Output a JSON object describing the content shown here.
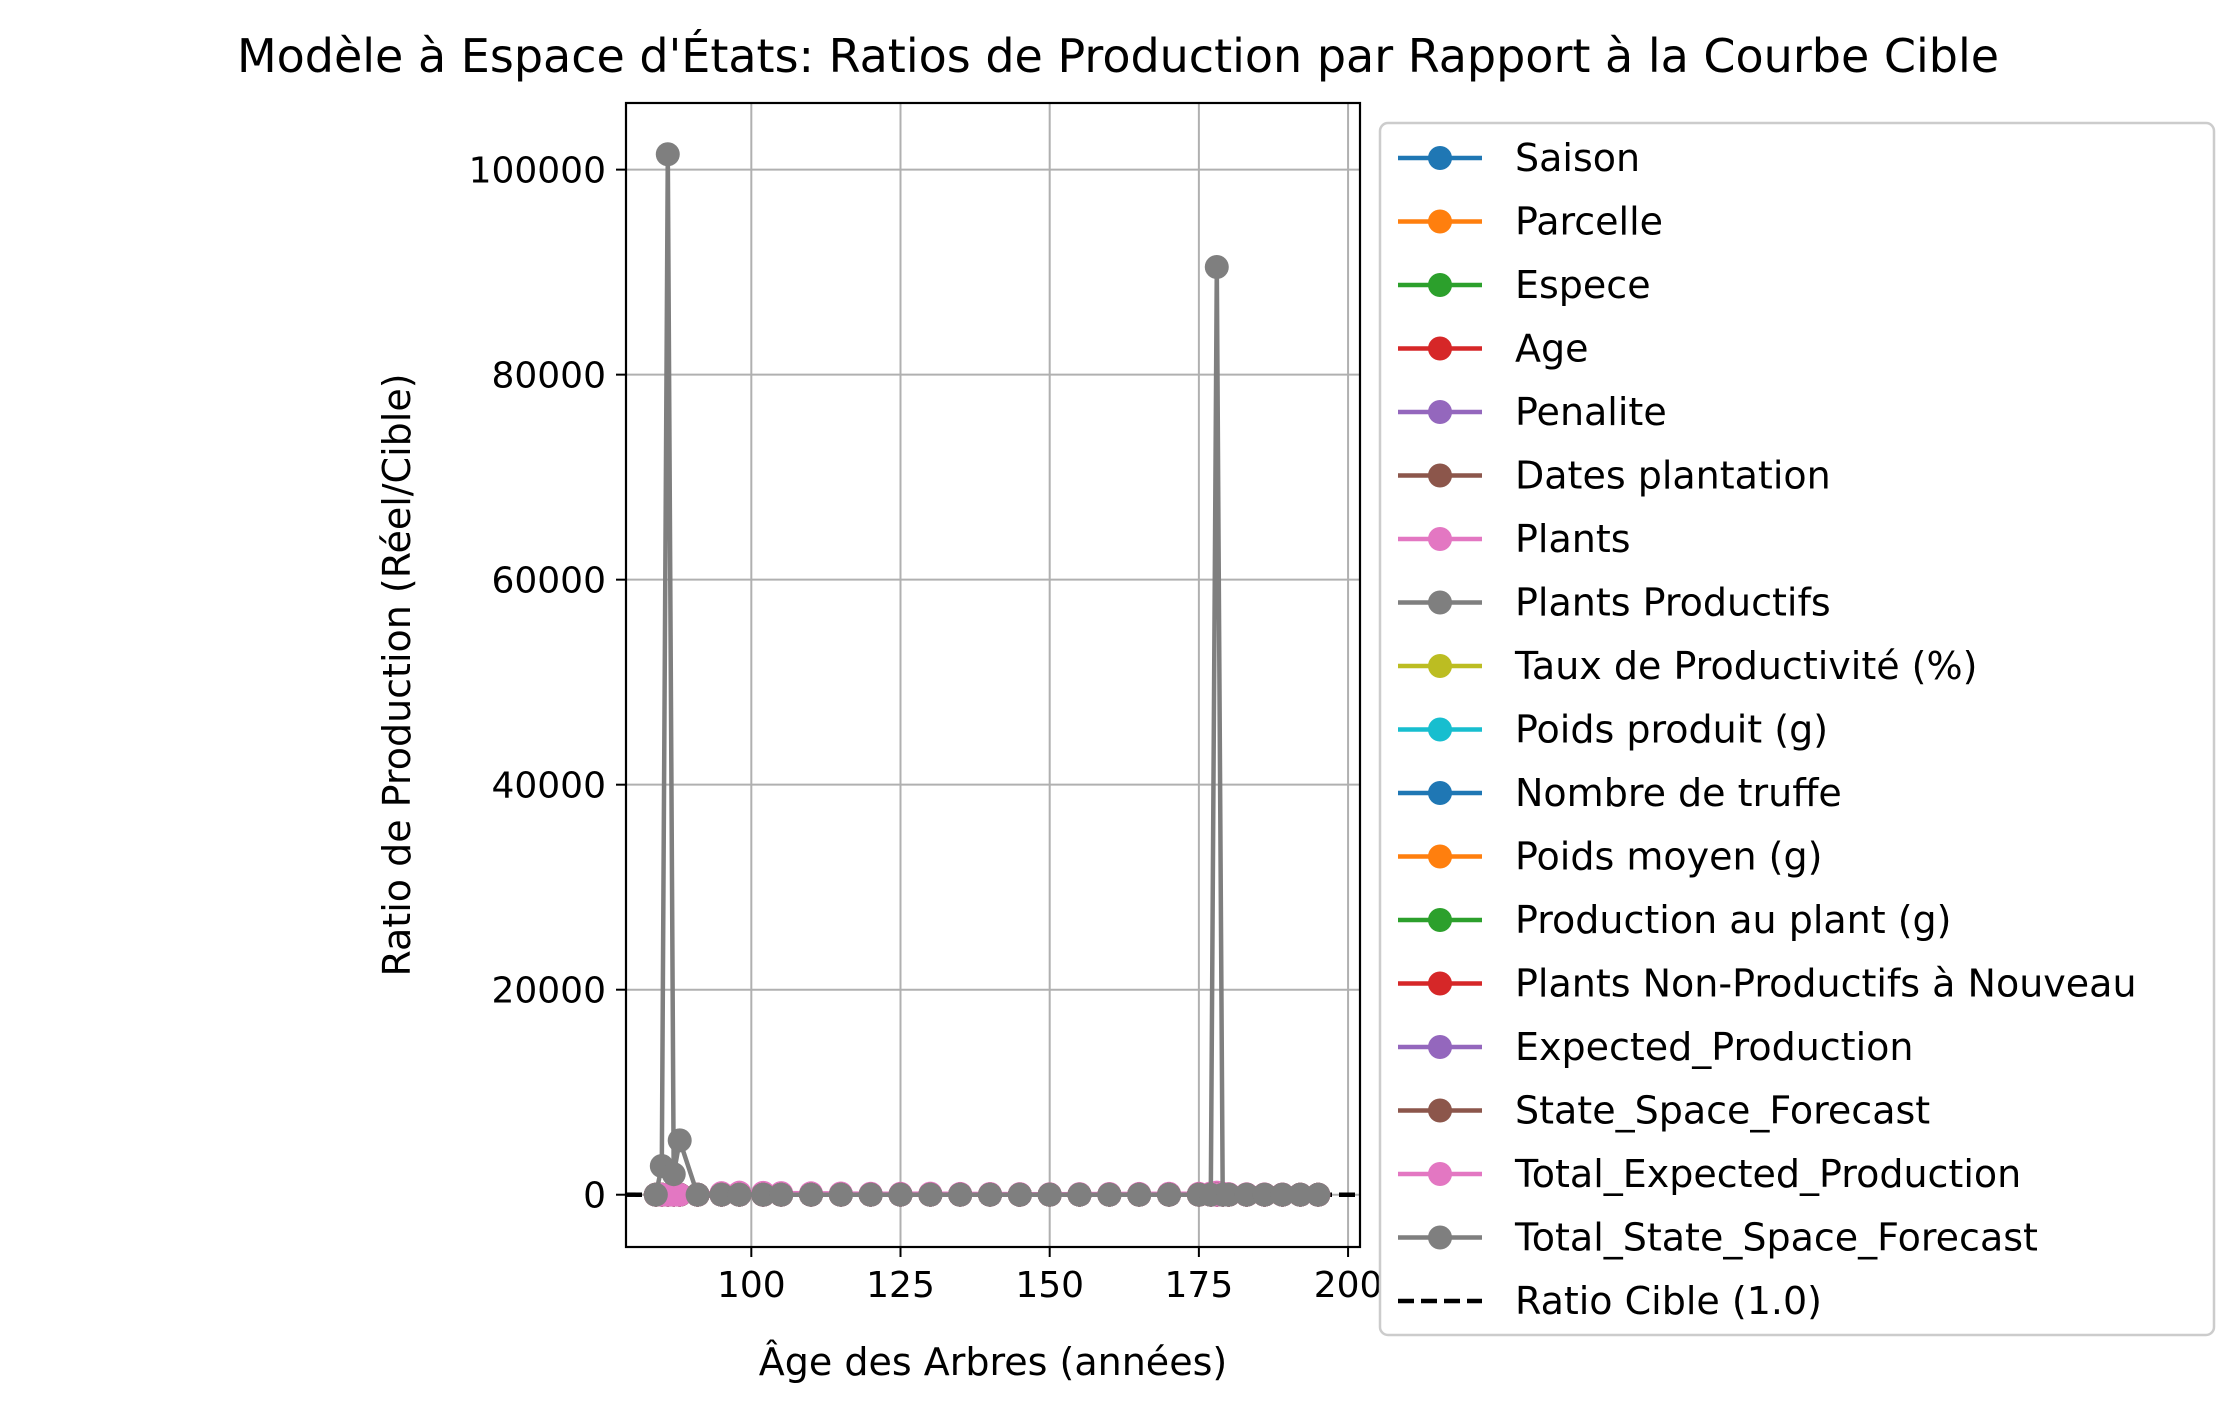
{
  "chart_data": {
    "type": "line",
    "title": "Modèle à Espace d'États: Ratios de Production par Rapport à la Courbe Cible",
    "xlabel": "Âge des Arbres (années)",
    "ylabel": "Ratio de Production (Réel/Cible)",
    "xlim": [
      79,
      202
    ],
    "ylim": [
      -5100,
      106500
    ],
    "x_ticks": [
      100,
      125,
      150,
      175,
      200
    ],
    "x_tick_labels": [
      "100",
      "125",
      "150",
      "175",
      "200"
    ],
    "y_ticks": [
      0,
      20000,
      40000,
      60000,
      80000,
      100000
    ],
    "y_tick_labels": [
      "0",
      "20000",
      "40000",
      "60000",
      "80000",
      "100000"
    ],
    "grid": true,
    "legend_position": "outside-right",
    "x": [
      84,
      85,
      86,
      87,
      88,
      91,
      95,
      98,
      102,
      105,
      110,
      115,
      120,
      125,
      130,
      135,
      140,
      145,
      150,
      155,
      160,
      165,
      170,
      175,
      177,
      178,
      179,
      180,
      183,
      186,
      189,
      192,
      195
    ],
    "series": [
      {
        "name": "Saison",
        "color": "#1f77b4",
        "values": [
          0,
          0,
          0,
          0,
          0,
          0,
          0,
          0,
          0,
          0,
          0,
          0,
          0,
          0,
          0,
          0,
          0,
          0,
          0,
          0,
          0,
          0,
          0,
          0,
          0,
          0,
          0,
          0,
          0,
          0,
          0,
          0,
          0
        ]
      },
      {
        "name": "Parcelle",
        "color": "#ff7f0e",
        "values": [
          0,
          0,
          0,
          0,
          0,
          0,
          0,
          0,
          0,
          0,
          0,
          0,
          0,
          0,
          0,
          0,
          0,
          0,
          0,
          0,
          0,
          0,
          0,
          0,
          0,
          0,
          0,
          0,
          0,
          0,
          0,
          0,
          0
        ]
      },
      {
        "name": "Espece",
        "color": "#2ca02c",
        "values": [
          0,
          0,
          0,
          0,
          0,
          0,
          0,
          0,
          0,
          0,
          0,
          0,
          0,
          0,
          0,
          0,
          0,
          0,
          0,
          0,
          0,
          0,
          0,
          0,
          0,
          0,
          0,
          0,
          0,
          0,
          0,
          0,
          0
        ]
      },
      {
        "name": "Age",
        "color": "#d62728",
        "values": [
          0,
          0,
          0,
          0,
          0,
          0,
          0,
          0,
          0,
          0,
          0,
          0,
          0,
          0,
          0,
          0,
          0,
          0,
          0,
          0,
          0,
          0,
          0,
          0,
          0,
          0,
          0,
          0,
          0,
          0,
          0,
          0,
          0
        ]
      },
      {
        "name": "Penalite",
        "color": "#9467bd",
        "values": [
          0,
          0,
          0,
          0,
          0,
          0,
          0,
          0,
          0,
          0,
          0,
          0,
          0,
          0,
          0,
          0,
          0,
          0,
          0,
          0,
          0,
          0,
          0,
          0,
          0,
          0,
          0,
          0,
          0,
          0,
          0,
          0,
          0
        ]
      },
      {
        "name": "Dates plantation",
        "color": "#8c564b",
        "values": [
          0,
          0,
          0,
          0,
          0,
          0,
          0,
          0,
          0,
          0,
          0,
          0,
          0,
          0,
          0,
          0,
          0,
          0,
          0,
          0,
          0,
          0,
          0,
          0,
          0,
          0,
          0,
          0,
          0,
          0,
          0,
          0,
          0
        ]
      },
      {
        "name": "Plants",
        "color": "#e377c2",
        "values": [
          0,
          0,
          0,
          0,
          0,
          0,
          150,
          200,
          180,
          160,
          140,
          120,
          100,
          90,
          110,
          80,
          70,
          60,
          50,
          60,
          70,
          80,
          100,
          90,
          120,
          200,
          100,
          60,
          40,
          30,
          20,
          10,
          0
        ]
      },
      {
        "name": "Plants Productifs",
        "color": "#7f7f7f",
        "values": [
          0,
          0,
          0,
          0,
          0,
          0,
          0,
          0,
          0,
          0,
          0,
          0,
          0,
          0,
          0,
          0,
          0,
          0,
          0,
          0,
          0,
          0,
          0,
          0,
          0,
          0,
          0,
          0,
          0,
          0,
          0,
          0,
          0
        ]
      },
      {
        "name": "Taux de Productivité (%)",
        "color": "#bcbd22",
        "values": [
          0,
          0,
          0,
          0,
          0,
          0,
          0,
          0,
          0,
          0,
          0,
          0,
          0,
          0,
          0,
          0,
          0,
          0,
          0,
          0,
          0,
          0,
          0,
          0,
          0,
          0,
          0,
          0,
          0,
          0,
          0,
          0,
          0
        ]
      },
      {
        "name": "Poids produit (g)",
        "color": "#17becf",
        "values": [
          0,
          0,
          0,
          0,
          0,
          0,
          0,
          0,
          0,
          0,
          0,
          0,
          0,
          0,
          0,
          0,
          0,
          0,
          0,
          0,
          0,
          0,
          0,
          0,
          0,
          0,
          0,
          0,
          0,
          0,
          0,
          0,
          0
        ]
      },
      {
        "name": "Nombre de truffe",
        "color": "#1f77b4",
        "values": [
          0,
          0,
          0,
          0,
          0,
          0,
          0,
          0,
          0,
          0,
          0,
          0,
          0,
          0,
          0,
          0,
          0,
          0,
          0,
          0,
          0,
          0,
          0,
          0,
          0,
          0,
          0,
          0,
          0,
          0,
          0,
          0,
          0
        ]
      },
      {
        "name": "Poids moyen (g)",
        "color": "#ff7f0e",
        "values": [
          0,
          0,
          0,
          0,
          0,
          0,
          0,
          0,
          0,
          0,
          0,
          0,
          0,
          0,
          0,
          0,
          0,
          0,
          0,
          0,
          0,
          0,
          0,
          0,
          0,
          0,
          0,
          0,
          0,
          0,
          0,
          0,
          0
        ]
      },
      {
        "name": "Production au plant (g)",
        "color": "#2ca02c",
        "values": [
          0,
          0,
          0,
          0,
          0,
          0,
          0,
          0,
          0,
          0,
          0,
          0,
          0,
          0,
          0,
          0,
          0,
          0,
          0,
          0,
          0,
          0,
          0,
          0,
          0,
          0,
          0,
          0,
          0,
          0,
          0,
          0,
          0
        ]
      },
      {
        "name": "Plants Non-Productifs à Nouveau",
        "color": "#d62728",
        "values": [
          0,
          0,
          0,
          0,
          0,
          0,
          0,
          0,
          0,
          0,
          0,
          0,
          0,
          0,
          0,
          0,
          0,
          0,
          0,
          0,
          0,
          0,
          0,
          0,
          0,
          0,
          0,
          0,
          0,
          0,
          0,
          0,
          0
        ]
      },
      {
        "name": "Expected_Production",
        "color": "#9467bd",
        "values": [
          0,
          0,
          0,
          0,
          0,
          0,
          0,
          0,
          0,
          0,
          0,
          0,
          0,
          0,
          0,
          0,
          0,
          0,
          0,
          0,
          0,
          0,
          0,
          0,
          0,
          0,
          0,
          0,
          0,
          0,
          0,
          0,
          0
        ]
      },
      {
        "name": "State_Space_Forecast",
        "color": "#8c564b",
        "values": [
          0,
          0,
          0,
          0,
          0,
          0,
          0,
          0,
          0,
          0,
          0,
          0,
          0,
          0,
          0,
          0,
          0,
          0,
          0,
          0,
          0,
          0,
          0,
          0,
          0,
          0,
          0,
          0,
          0,
          0,
          0,
          0,
          0
        ]
      },
      {
        "name": "Total_Expected_Production",
        "color": "#e377c2",
        "values": [
          0,
          0,
          0,
          0,
          0,
          0,
          0,
          0,
          0,
          0,
          0,
          0,
          0,
          0,
          0,
          0,
          0,
          0,
          0,
          0,
          0,
          0,
          0,
          0,
          0,
          0,
          0,
          0,
          0,
          0,
          0,
          0,
          0
        ]
      },
      {
        "name": "Total_State_Space_Forecast",
        "color": "#7f7f7f",
        "values": [
          0,
          2800,
          101500,
          2000,
          5300,
          0,
          0,
          0,
          0,
          0,
          0,
          0,
          0,
          0,
          0,
          0,
          0,
          0,
          0,
          0,
          0,
          0,
          0,
          0,
          0,
          90500,
          0,
          0,
          0,
          0,
          0,
          0,
          0
        ]
      }
    ],
    "reference_line": {
      "name": "Ratio Cible (1.0)",
      "value": 1.0,
      "color": "#000000",
      "style": "dashed"
    }
  }
}
